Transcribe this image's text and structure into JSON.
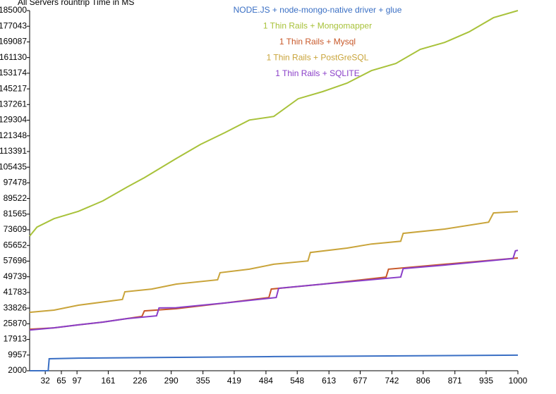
{
  "chart_data": {
    "type": "line",
    "title": "All Servers rountrip Time in MS",
    "xlim": [
      0,
      1000
    ],
    "ylim": [
      2000,
      185000
    ],
    "xticks": [
      32,
      65,
      97,
      161,
      226,
      290,
      355,
      419,
      484,
      548,
      613,
      677,
      742,
      806,
      871,
      935,
      1000
    ],
    "yticks": [
      2000,
      9957,
      17913,
      25870,
      33826,
      41783,
      49739,
      57696,
      65652,
      73609,
      81565,
      89522,
      97478,
      105435,
      113391,
      121348,
      129304,
      137261,
      145217,
      153174,
      161130,
      169087,
      177043,
      185000
    ],
    "series": [
      {
        "name": "NODE.JS + node-mongo-native driver + glue",
        "color": "#3a6fc4",
        "x": [
          0,
          38,
          40,
          100,
          300,
          500,
          1000
        ],
        "values": [
          2000,
          2000,
          8100,
          8400,
          8800,
          9200,
          9900
        ]
      },
      {
        "name": "1 Thin Rails + Mongomapper",
        "color": "#a8c23a",
        "x": [
          0,
          15,
          50,
          100,
          150,
          200,
          235,
          300,
          350,
          400,
          450,
          500,
          550,
          600,
          650,
          700,
          750,
          800,
          850,
          900,
          950,
          1000
        ],
        "values": [
          70400,
          75000,
          79300,
          83000,
          88300,
          95400,
          100100,
          109800,
          117000,
          123000,
          129400,
          131200,
          140200,
          143800,
          148100,
          154500,
          158100,
          165300,
          168800,
          174200,
          181400,
          185000
        ]
      },
      {
        "name": "1 Thin Rails + Mysql",
        "color": "#c8592a",
        "x": [
          0,
          50,
          100,
          150,
          230,
          235,
          300,
          400,
          490,
          495,
          600,
          730,
          735,
          850,
          1000
        ],
        "values": [
          23100,
          23800,
          25300,
          26700,
          29600,
          32400,
          33500,
          36400,
          39200,
          43500,
          46000,
          49600,
          53600,
          56100,
          59300
        ]
      },
      {
        "name": "1 Thin Rails + PostGreSQL",
        "color": "#c9a43a",
        "x": [
          0,
          50,
          100,
          190,
          195,
          250,
          300,
          385,
          390,
          450,
          500,
          570,
          575,
          650,
          700,
          760,
          765,
          850,
          940,
          950,
          1000
        ],
        "values": [
          31700,
          32800,
          35300,
          38200,
          42100,
          43500,
          46000,
          48200,
          51800,
          53600,
          56100,
          57800,
          62100,
          64300,
          66400,
          67800,
          71800,
          74000,
          77500,
          82200,
          82900
        ]
      },
      {
        "name": "1 Thin Rails + SQLITE",
        "color": "#8a3ec8",
        "x": [
          0,
          50,
          100,
          150,
          200,
          260,
          265,
          300,
          400,
          505,
          510,
          600,
          760,
          765,
          850,
          990,
          995,
          1000
        ],
        "values": [
          22700,
          23800,
          25300,
          26700,
          28500,
          29900,
          33900,
          34000,
          36400,
          39200,
          43900,
          46000,
          49600,
          53900,
          55700,
          59000,
          62900,
          63200
        ]
      }
    ]
  }
}
